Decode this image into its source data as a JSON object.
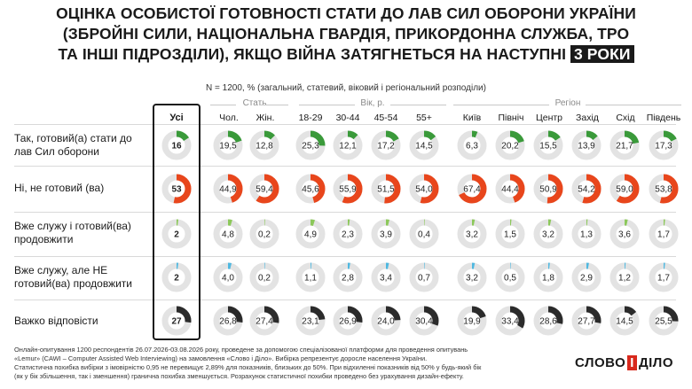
{
  "title_line1": "ОЦІНКА ОСОБИСТОЇ ГОТОВНОСТІ СТАТИ ДО ЛАВ СИЛ ОБОРОНИ УКРАЇНИ",
  "title_line2": "(ЗБРОЙНІ СИЛИ, НАЦІОНАЛЬНА ГВАРДІЯ, ПРИКОРДОННА СЛУЖБА, ТРО",
  "title_line3": "ТА ІНШІ ПІДРОЗДІЛИ), ЯКЩО ВІЙНА ЗАТЯГНЕТЬСЯ НА НАСТУПНІ",
  "title_highlight": "3 РОКИ",
  "subtitle": "N = 1200, % (загальний, статевий, віковий і регіональний розподіли)",
  "groups": {
    "sex": "Стать",
    "age": "Вік, р.",
    "region": "Регіон"
  },
  "columns": [
    "Усі",
    "Чол.",
    "Жін.",
    "18-29",
    "30-44",
    "45-54",
    "55+",
    "Київ",
    "Північ",
    "Центр",
    "Захід",
    "Схід",
    "Південь"
  ],
  "rows": [
    {
      "label": "Так, готовий(а) стати до лав Сил оборони",
      "color": "#3a9a3a"
    },
    {
      "label": "Ні, не готовий (ва)",
      "color": "#e8461c"
    },
    {
      "label": "Вже служу і готовий(ва) продовжити",
      "color": "#8cc85a"
    },
    {
      "label": "Вже служу, але НЕ готовий(ва) продовжити",
      "color": "#4fb8e0"
    },
    {
      "label": "Важко відповісти",
      "color": "#2b2b2b"
    }
  ],
  "chart_data": {
    "type": "table",
    "title": "ОЦІНКА ОСОБИСТОЇ ГОТОВНОСТІ СТАТИ ДО ЛАВ СИЛ ОБОРОНИ УКРАЇНИ (ЗБРОЙНІ СИЛИ, НАЦІОНАЛЬНА ГВАРДІЯ, ПРИКОРДОННА СЛУЖБА, ТРО ТА ІНШІ ПІДРОЗДІЛИ), ЯКЩО ВІЙНА ЗАТЯГНЕТЬСЯ НА НАСТУПНІ 3 РОКИ",
    "categories": [
      "Усі",
      "Чол.",
      "Жін.",
      "18-29",
      "30-44",
      "45-54",
      "55+",
      "Київ",
      "Північ",
      "Центр",
      "Захід",
      "Схід",
      "Південь"
    ],
    "series": [
      {
        "name": "Так, готовий(а) стати до лав Сил оборони",
        "values": [
          16,
          19.5,
          12.8,
          25.3,
          12.1,
          17.2,
          14.5,
          6.3,
          20.2,
          15.5,
          13.9,
          21.7,
          17.3
        ]
      },
      {
        "name": "Ні, не готовий (ва)",
        "values": [
          53,
          44.9,
          59.4,
          45.6,
          55.9,
          51.5,
          54.0,
          67.4,
          44.4,
          50.9,
          54.2,
          59.0,
          53.8
        ]
      },
      {
        "name": "Вже служу і готовий(ва) продовжити",
        "values": [
          2,
          4.8,
          0.2,
          4.9,
          2.3,
          3.9,
          0.4,
          3.2,
          1.5,
          3.2,
          1.3,
          3.6,
          1.7
        ]
      },
      {
        "name": "Вже служу, але НЕ готовий(ва) продовжити",
        "values": [
          2,
          4.0,
          0.2,
          1.1,
          2.8,
          3.4,
          0.7,
          3.2,
          0.5,
          1.8,
          2.9,
          1.2,
          1.7
        ]
      },
      {
        "name": "Важко відповісти",
        "values": [
          27,
          26.8,
          27.4,
          23.1,
          26.9,
          24.0,
          30.4,
          19.9,
          33.4,
          28.6,
          27.7,
          14.5,
          25.5
        ]
      }
    ],
    "display_labels": [
      [
        "16",
        "19,5",
        "12,8",
        "25,3",
        "12,1",
        "17,2",
        "14,5",
        "6,3",
        "20,2",
        "15,5",
        "13,9",
        "21,7",
        "17,3"
      ],
      [
        "53",
        "44,9",
        "59,4",
        "45,6",
        "55,9",
        "51,5",
        "54,0",
        "67,4",
        "44,4",
        "50,9",
        "54,2",
        "59,0",
        "53,8"
      ],
      [
        "2",
        "4,8",
        "0,2",
        "4,9",
        "2,3",
        "3,9",
        "0,4",
        "3,2",
        "1,5",
        "3,2",
        "1,3",
        "3,6",
        "1,7"
      ],
      [
        "2",
        "4,0",
        "0,2",
        "1,1",
        "2,8",
        "3,4",
        "0,7",
        "3,2",
        "0,5",
        "1,8",
        "2,9",
        "1,2",
        "1,7"
      ],
      [
        "27",
        "26,8",
        "27,4",
        "23,1",
        "26,9",
        "24,0",
        "30,4",
        "19,9",
        "33,4",
        "28,6",
        "27,7",
        "14,5",
        "25,5"
      ]
    ],
    "track_color": "#e3e3e3",
    "ylim": [
      0,
      100
    ]
  },
  "footer": [
    "Онлайн-опитування 1200 респондентів 26.07.2026-03.08.2026 року, проведене за допомогою спеціалізованої платформи для проведення опитувань",
    "«Lemur» (CAWI – Computer Assisted Web Interviewing) на замовлення «Слово і Діло». Вибірка репрезентує доросле населення України.",
    "Статистична похибка вибірки з імовірністю 0,95 не перевищує 2,89% для показників, близьких до 50%. При відхиленні показників від 50% у будь-який бік",
    "(як у бік збільшення, так і зменшення) гранична похибка зменшується. Розрахунок статистичної похибки проведено без урахування дизайн-ефекту."
  ],
  "logo": {
    "left": "СЛОВО",
    "mid": "І",
    "right": "ДІЛО"
  }
}
